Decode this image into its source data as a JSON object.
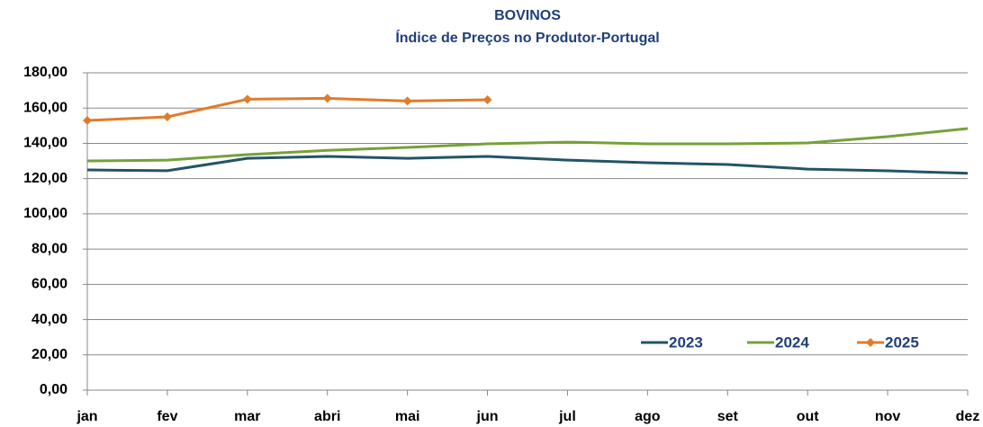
{
  "chart_data": {
    "type": "line",
    "title": "BOVINOS",
    "subtitle": "Índice de Preços no Produtor-Portugal",
    "categories": [
      "jan",
      "fev",
      "mar",
      "abri",
      "mai",
      "jun",
      "jul",
      "ago",
      "set",
      "out",
      "nov",
      "dez"
    ],
    "series": [
      {
        "name": "2023",
        "color": "#235467",
        "marker": false,
        "values": [
          124.9,
          124.5,
          131.5,
          132.6,
          131.5,
          132.6,
          130.5,
          129,
          128,
          125.4,
          124.4,
          123
        ]
      },
      {
        "name": "2024",
        "color": "#77a03a",
        "marker": false,
        "values": [
          130,
          130.5,
          133.6,
          136,
          137.7,
          139.7,
          140.7,
          139.7,
          139.7,
          140.2,
          143.8,
          148.4
        ]
      },
      {
        "name": "2025",
        "color": "#e07b2c",
        "marker": true,
        "values": [
          153,
          155,
          165,
          165.5,
          164,
          164.7,
          null,
          null,
          null,
          null,
          null,
          null
        ]
      }
    ],
    "ylim": [
      0,
      180
    ],
    "yticks": [
      {
        "value": 0,
        "label": "0,00"
      },
      {
        "value": 20,
        "label": "20,00"
      },
      {
        "value": 40,
        "label": "40,00"
      },
      {
        "value": 60,
        "label": "60,00"
      },
      {
        "value": 80,
        "label": "80,00"
      },
      {
        "value": 100,
        "label": "100,00"
      },
      {
        "value": 120,
        "label": "120,00"
      },
      {
        "value": 140,
        "label": "140,00"
      },
      {
        "value": 160,
        "label": "160,00"
      },
      {
        "value": 180,
        "label": "180,00"
      }
    ],
    "grid": true,
    "legend": "lower right"
  }
}
